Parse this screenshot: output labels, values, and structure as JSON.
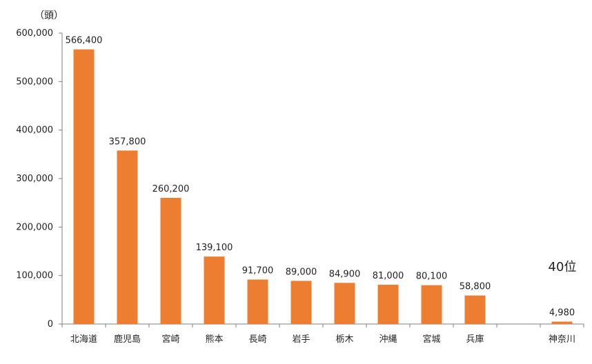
{
  "chart_data": {
    "type": "bar",
    "unit_label": "（頭）",
    "categories": [
      "北海道",
      "鹿児島",
      "宮崎",
      "熊本",
      "長崎",
      "岩手",
      "栃木",
      "沖縄",
      "宮城",
      "兵庫",
      "",
      "神奈川"
    ],
    "values": [
      566400,
      357800,
      260200,
      139100,
      91700,
      89000,
      84900,
      81000,
      80100,
      58800,
      null,
      4980
    ],
    "data_labels": [
      "566,400",
      "357,800",
      "260,200",
      "139,100",
      "91,700",
      "89,000",
      "84,900",
      "81,000",
      "80,100",
      "58,800",
      "",
      "4,980"
    ],
    "y_ticks": [
      0,
      100000,
      200000,
      300000,
      400000,
      500000,
      600000
    ],
    "y_tick_labels": [
      "0",
      "100,000",
      "200,000",
      "300,000",
      "400,000",
      "500,000",
      "600,000"
    ],
    "ylim": [
      0,
      600000
    ],
    "annotation": "40位",
    "bar_color": "#ed7d31",
    "grid": false,
    "legend": "none"
  }
}
